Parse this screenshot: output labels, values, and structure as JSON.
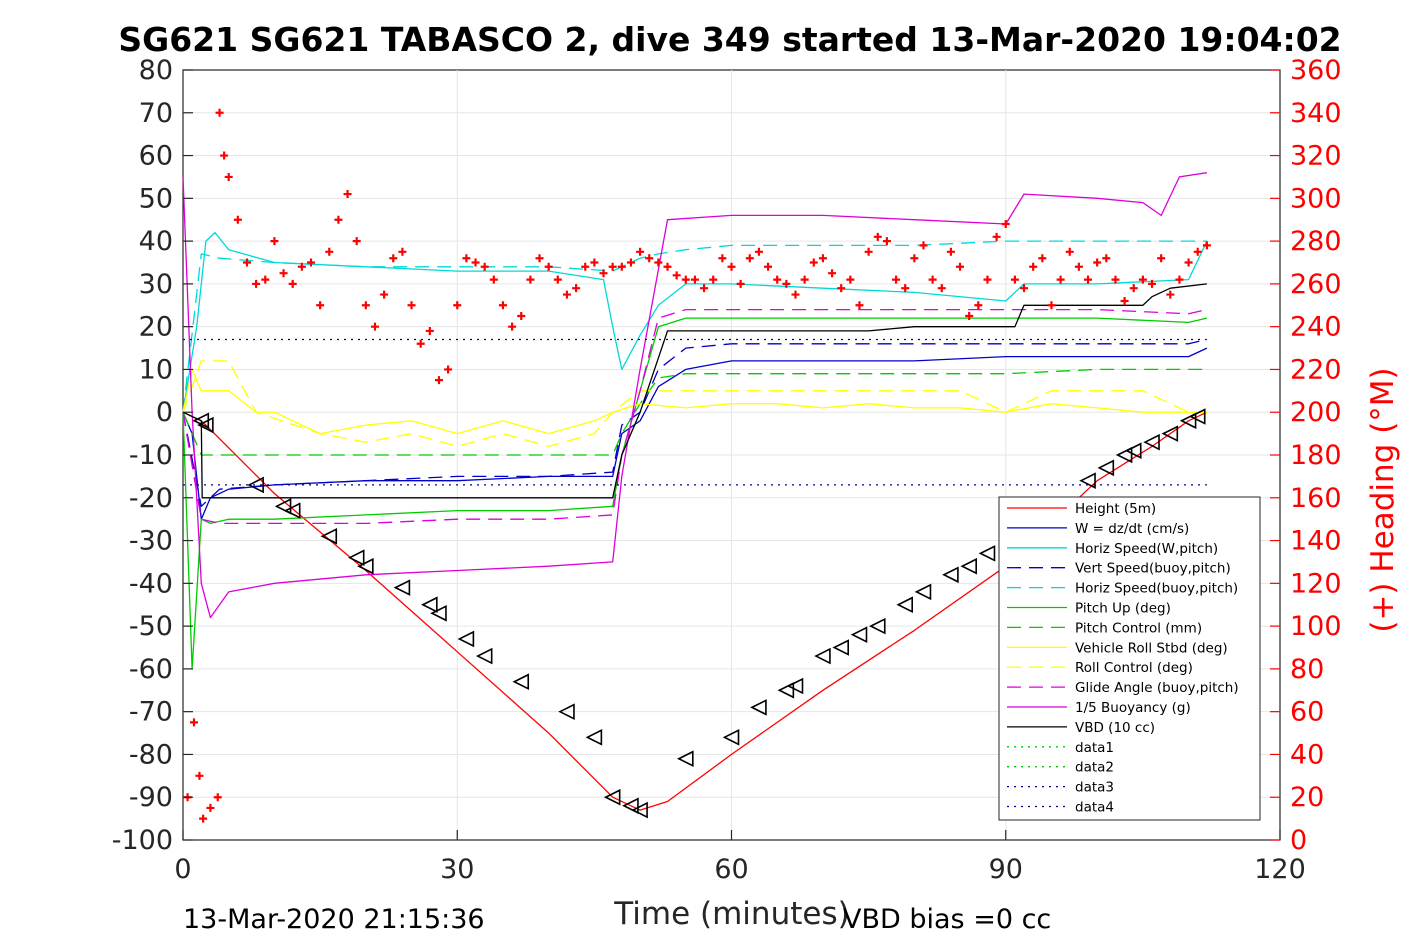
{
  "chart_data": {
    "type": "line",
    "title": "SG621 SG621 TABASCO 2, dive 349 started 13-Mar-2020 19:04:02",
    "xlabel": "Time (minutes)",
    "ylabel_left": "",
    "ylabel_right": "(+) Heading (°M)",
    "xlim": [
      0,
      120
    ],
    "ylim_left": [
      -100,
      80
    ],
    "ylim_right": [
      0,
      360
    ],
    "x_ticks": [
      "0",
      "30",
      "60",
      "90",
      "120"
    ],
    "y_ticks_left": [
      "80",
      "70",
      "60",
      "50",
      "40",
      "30",
      "20",
      "10",
      "0",
      "-10",
      "-20",
      "-30",
      "-40",
      "-50",
      "-60",
      "-70",
      "-80",
      "-90",
      "-100"
    ],
    "y_ticks_right": [
      "360",
      "340",
      "320",
      "300",
      "280",
      "260",
      "240",
      "220",
      "200",
      "180",
      "160",
      "140",
      "120",
      "100",
      "80",
      "60",
      "40",
      "20",
      "0"
    ],
    "grid": true,
    "legend_position": "lower-right",
    "footer_left": "13-Mar-2020 21:15:36",
    "footer_right": "VBD bias =0 cc",
    "series": [
      {
        "name": "Height (5m)",
        "color": "#ff0000",
        "style": "solid",
        "x": [
          0,
          1,
          2,
          2.5,
          10,
          20,
          30,
          40,
          47,
          50,
          53,
          60,
          70,
          80,
          90,
          100,
          106,
          110,
          112
        ],
        "y": [
          0,
          -1,
          -2,
          -3,
          -19,
          -37,
          -56,
          -75,
          -90,
          -93,
          -91,
          -80,
          -65,
          -51,
          -36,
          -16,
          -8,
          -2,
          0
        ]
      },
      {
        "name": "W = dz/dt (cm/s)",
        "color": "#0000cc",
        "style": "solid",
        "x": [
          0,
          1,
          2,
          3,
          5,
          10,
          20,
          30,
          40,
          47,
          48,
          50,
          52,
          55,
          60,
          70,
          80,
          90,
          100,
          110,
          112
        ],
        "y": [
          0,
          -5,
          -25,
          -20,
          -18,
          -17,
          -16,
          -16,
          -15,
          -15,
          -5,
          -2,
          6,
          10,
          12,
          12,
          12,
          13,
          13,
          13,
          15
        ]
      },
      {
        "name": "Horiz Speed(W,pitch)",
        "color": "#00d8d8",
        "style": "solid",
        "x": [
          0,
          1.5,
          2.5,
          3.5,
          5,
          10,
          20,
          30,
          40,
          46,
          47,
          48,
          50,
          52,
          55,
          60,
          70,
          80,
          90,
          92,
          100,
          110,
          112
        ],
        "y": [
          0,
          20,
          40,
          42,
          38,
          35,
          34,
          33,
          33,
          31,
          20,
          10,
          18,
          25,
          30,
          30,
          29,
          28,
          26,
          30,
          30,
          31,
          40
        ]
      },
      {
        "name": "Vert Speed(buoy,pitch)",
        "color": "#0000cc",
        "style": "dashed",
        "x": [
          0,
          2,
          4,
          10,
          20,
          30,
          40,
          47,
          48,
          50,
          52,
          55,
          60,
          70,
          80,
          90,
          100,
          110,
          112
        ],
        "y": [
          0,
          -22,
          -18,
          -17,
          -16,
          -15,
          -15,
          -14,
          -3,
          0,
          10,
          15,
          16,
          16,
          16,
          16,
          16,
          16,
          17
        ]
      },
      {
        "name": "Horiz Speed(buoy,pitch)",
        "color": "#00d8d8",
        "style": "dashed",
        "x": [
          0,
          2,
          4,
          10,
          20,
          30,
          40,
          47,
          50,
          52,
          55,
          60,
          70,
          80,
          90,
          100,
          110,
          112
        ],
        "y": [
          0,
          37,
          36,
          35,
          34,
          34,
          34,
          33,
          36,
          37,
          38,
          39,
          39,
          39,
          40,
          40,
          40,
          40
        ]
      },
      {
        "name": "Pitch Up (deg)",
        "color": "#00cc00",
        "style": "solid",
        "x": [
          0,
          1,
          2,
          3,
          5,
          10,
          20,
          30,
          40,
          47,
          48,
          50,
          52,
          55,
          60,
          70,
          80,
          90,
          100,
          110,
          112
        ],
        "y": [
          0,
          -60,
          -25,
          -26,
          -25,
          -25,
          -24,
          -23,
          -23,
          -22,
          -10,
          5,
          20,
          22,
          22,
          22,
          22,
          22,
          22,
          21,
          22
        ]
      },
      {
        "name": "Pitch Control (mm)",
        "color": "#00cc00",
        "style": "dashed",
        "x": [
          0,
          2,
          4,
          47,
          48,
          50,
          52,
          55,
          60,
          70,
          80,
          90,
          100,
          112
        ],
        "y": [
          0,
          -10,
          -10,
          -10,
          -5,
          2,
          8,
          9,
          9,
          9,
          9,
          9,
          10,
          10
        ]
      },
      {
        "name": "Vehicle Roll Stbd (deg)",
        "color": "#ffff00",
        "style": "solid",
        "x": [
          0,
          1,
          2,
          5,
          8,
          10,
          15,
          20,
          25,
          30,
          35,
          40,
          45,
          47,
          50,
          55,
          60,
          65,
          70,
          75,
          80,
          85,
          90,
          95,
          100,
          105,
          110,
          112
        ],
        "y": [
          0,
          10,
          5,
          5,
          0,
          0,
          -5,
          -3,
          -2,
          -5,
          -2,
          -5,
          -2,
          0,
          2,
          1,
          2,
          2,
          1,
          2,
          1,
          1,
          0,
          2,
          1,
          0,
          0,
          0
        ]
      },
      {
        "name": "Roll Control (deg)",
        "color": "#ffff00",
        "style": "dashed",
        "x": [
          0,
          2,
          5,
          8,
          15,
          20,
          25,
          30,
          35,
          40,
          45,
          47,
          50,
          55,
          60,
          65,
          70,
          75,
          80,
          85,
          90,
          95,
          100,
          105,
          110,
          112
        ],
        "y": [
          0,
          12,
          12,
          0,
          -5,
          -7,
          -5,
          -8,
          -5,
          -8,
          -5,
          0,
          5,
          5,
          5,
          5,
          5,
          5,
          5,
          5,
          0,
          5,
          5,
          5,
          0,
          0
        ]
      },
      {
        "name": "Glide Angle (buoy,pitch)",
        "color": "#dd00dd",
        "style": "dashed",
        "x": [
          0,
          2,
          4,
          10,
          20,
          30,
          40,
          47,
          48,
          50,
          52,
          55,
          60,
          70,
          80,
          90,
          100,
          110,
          112
        ],
        "y": [
          0,
          -25,
          -26,
          -26,
          -26,
          -25,
          -25,
          -24,
          -10,
          5,
          22,
          24,
          24,
          24,
          24,
          24,
          24,
          23,
          24
        ]
      },
      {
        "name": "1/5 Buoyancy (g)",
        "color": "#dd00dd",
        "style": "solid",
        "x": [
          0,
          1,
          2,
          3,
          5,
          10,
          20,
          30,
          40,
          47,
          48,
          50,
          53,
          60,
          70,
          80,
          90,
          92,
          100,
          105,
          107,
          109,
          112
        ],
        "y": [
          55,
          0,
          -40,
          -48,
          -42,
          -40,
          -38,
          -37,
          -36,
          -35,
          -15,
          10,
          45,
          46,
          46,
          45,
          44,
          51,
          50,
          49,
          46,
          55,
          56
        ]
      },
      {
        "name": "VBD (10 cc)",
        "color": "#000000",
        "style": "solid",
        "x": [
          0,
          2,
          2.1,
          10,
          20,
          30,
          40,
          47,
          48,
          50,
          53,
          60,
          70,
          75,
          80,
          90,
          91,
          92,
          100,
          105,
          106,
          108,
          112
        ],
        "y": [
          0,
          -2,
          -20,
          -20,
          -20,
          -20,
          -20,
          -20,
          -10,
          0,
          19,
          19,
          19,
          19,
          20,
          20,
          20,
          25,
          25,
          25,
          27,
          29,
          30
        ]
      },
      {
        "name": "data1",
        "color": "#00cc00",
        "style": "dotted",
        "x": [],
        "y": []
      },
      {
        "name": "data2",
        "color": "#00cc00",
        "style": "dotted",
        "x": [],
        "y": []
      },
      {
        "name": "data3",
        "color": "#000088",
        "style": "dotted",
        "x": [
          0,
          112
        ],
        "y": [
          17,
          17
        ]
      },
      {
        "name": "data4",
        "color": "#000088",
        "style": "dotted",
        "x": [
          0,
          112
        ],
        "y": [
          -17,
          -17
        ]
      }
    ],
    "heading": {
      "name": "(+) Heading (°M)",
      "axis": "right",
      "color": "#ff0000",
      "marker": "+",
      "x": [
        0.5,
        1.2,
        1.8,
        2.2,
        3,
        3.8,
        4,
        4.5,
        5,
        6,
        7,
        8,
        9,
        10,
        11,
        12,
        13,
        14,
        15,
        16,
        17,
        18,
        19,
        20,
        21,
        22,
        23,
        24,
        25,
        26,
        27,
        28,
        29,
        30,
        31,
        32,
        33,
        34,
        35,
        36,
        37,
        38,
        39,
        40,
        41,
        42,
        43,
        44,
        45,
        46,
        47,
        48,
        49,
        50,
        51,
        52,
        53,
        54,
        55,
        56,
        57,
        58,
        59,
        60,
        61,
        62,
        63,
        64,
        65,
        66,
        67,
        68,
        69,
        70,
        71,
        72,
        73,
        74,
        75,
        76,
        77,
        78,
        79,
        80,
        81,
        82,
        83,
        84,
        85,
        86,
        87,
        88,
        89,
        90,
        91,
        92,
        93,
        94,
        95,
        96,
        97,
        98,
        99,
        100,
        101,
        102,
        103,
        104,
        105,
        106,
        107,
        108,
        109,
        110,
        111,
        112
      ],
      "y": [
        20,
        55,
        30,
        10,
        15,
        20,
        340,
        320,
        310,
        290,
        270,
        260,
        262,
        280,
        265,
        260,
        268,
        270,
        250,
        275,
        290,
        302,
        280,
        250,
        240,
        255,
        272,
        275,
        250,
        232,
        238,
        215,
        220,
        250,
        272,
        270,
        268,
        262,
        250,
        240,
        245,
        262,
        272,
        268,
        262,
        255,
        258,
        268,
        270,
        265,
        268,
        268,
        270,
        275,
        272,
        270,
        268,
        264,
        262,
        262,
        258,
        262,
        272,
        268,
        260,
        272,
        275,
        268,
        262,
        260,
        255,
        262,
        270,
        272,
        265,
        258,
        262,
        250,
        275,
        282,
        280,
        262,
        258,
        272,
        278,
        262,
        258,
        275,
        268,
        245,
        250,
        262,
        282,
        288,
        262,
        258,
        268,
        272,
        250,
        262,
        275,
        268,
        262,
        270,
        272,
        262,
        252,
        258,
        262,
        260,
        272,
        255,
        262,
        270,
        275,
        278
      ]
    },
    "depth_markers": {
      "marker": "triangle",
      "color": "#000000",
      "x": [
        2,
        2.5,
        8,
        11,
        12,
        16,
        19,
        20,
        24,
        27,
        28,
        31,
        33,
        37,
        42,
        45,
        47,
        49,
        50,
        55,
        60,
        63,
        66,
        67,
        70,
        72,
        74,
        76,
        79,
        81,
        84,
        86,
        88,
        99,
        101,
        103,
        104,
        106,
        108,
        110,
        111
      ],
      "y": [
        -2,
        -3,
        -17,
        -22,
        -23,
        -29,
        -34,
        -36,
        -41,
        -45,
        -47,
        -53,
        -57,
        -63,
        -70,
        -76,
        -90,
        -92,
        -93,
        -81,
        -76,
        -69,
        -65,
        -64,
        -57,
        -55,
        -52,
        -50,
        -45,
        -42,
        -38,
        -36,
        -33,
        -16,
        -13,
        -10,
        -9,
        -7,
        -5,
        -2,
        -1
      ]
    }
  }
}
